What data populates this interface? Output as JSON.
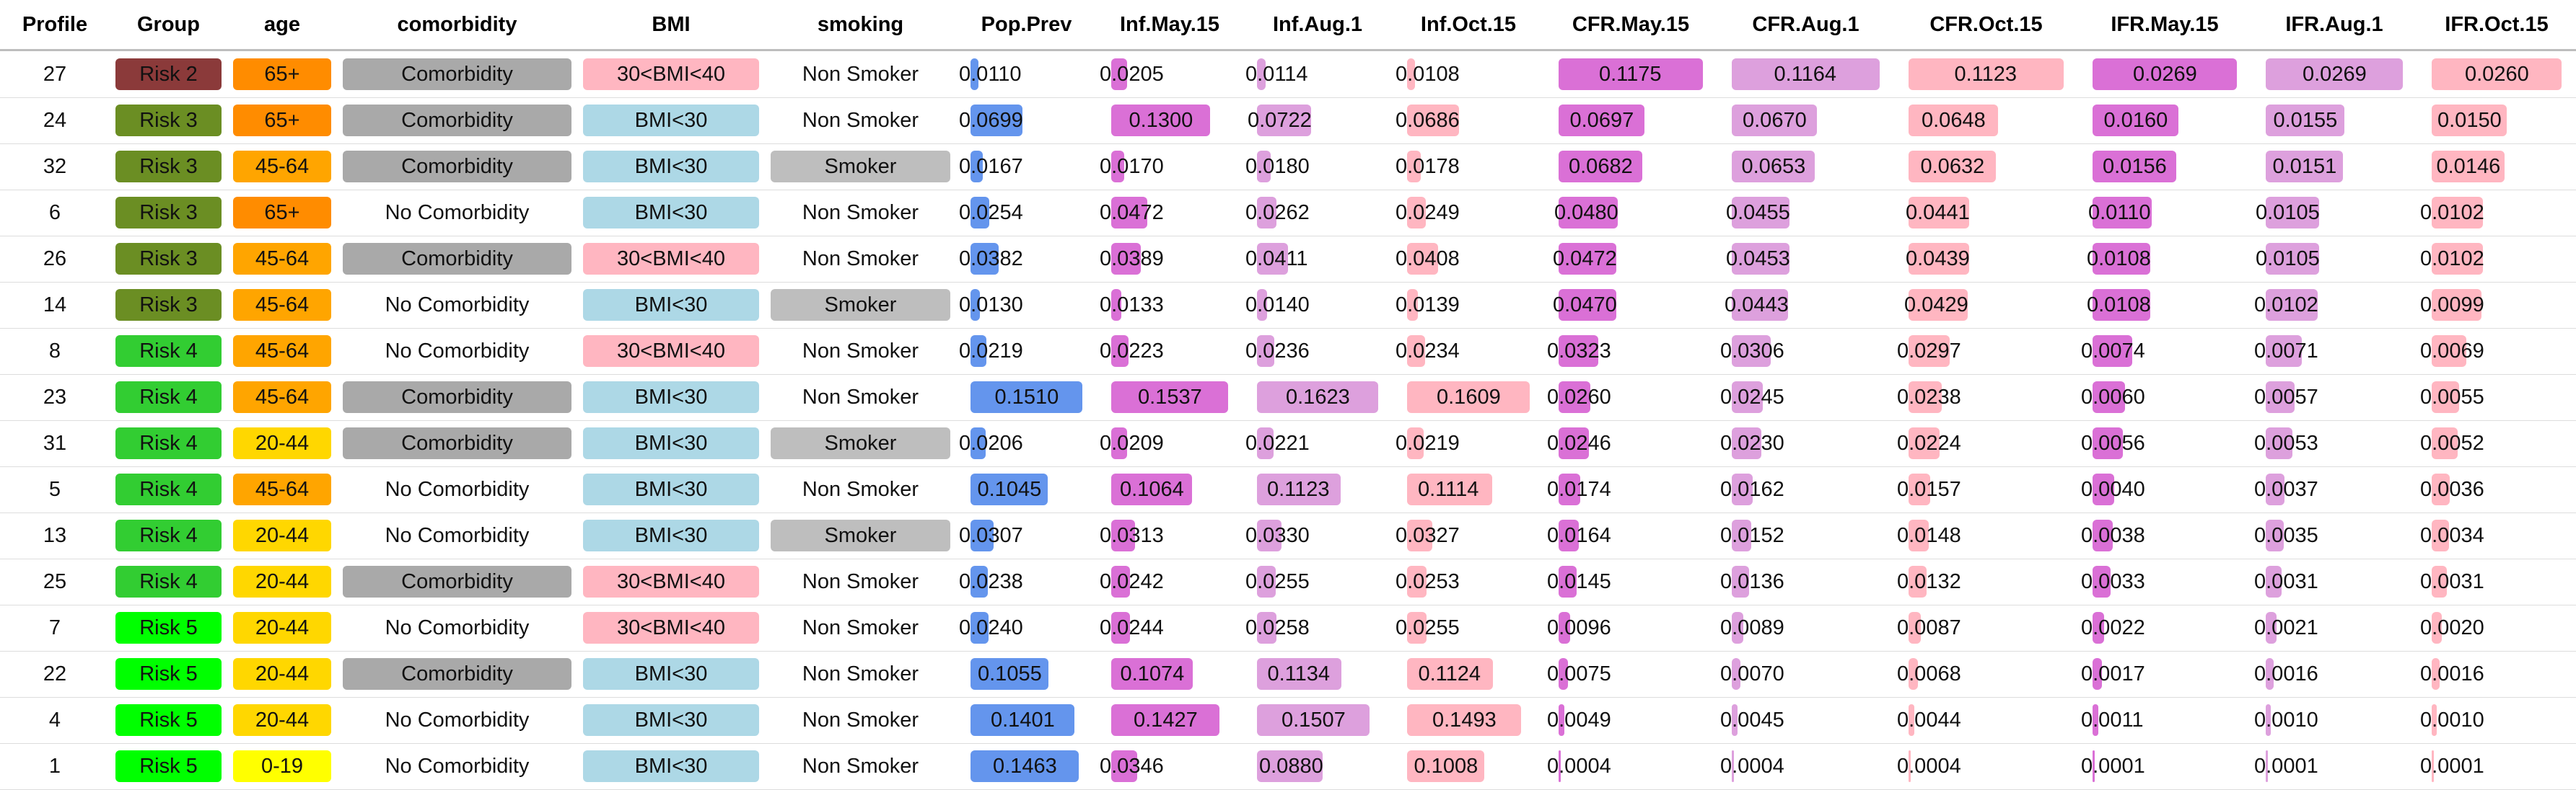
{
  "chart_data": {
    "type": "table",
    "columns": [
      "Profile",
      "Group",
      "age",
      "comorbidity",
      "BMI",
      "smoking",
      "Pop.Prev",
      "Inf.May.15",
      "Inf.Aug.1",
      "Inf.Oct.15",
      "CFR.May.15",
      "CFR.Aug.1",
      "CFR.Oct.15",
      "IFR.May.15",
      "IFR.Aug.1",
      "IFR.Oct.15"
    ],
    "rows": [
      {
        "Profile": "27",
        "Group": "Risk 2",
        "age": "65+",
        "comorbidity": "Comorbidity",
        "BMI": "30<BMI<40",
        "smoking": "Non Smoker",
        "Pop.Prev": "0.0110",
        "Inf.May.15": "0.0205",
        "Inf.Aug.1": "0.0114",
        "Inf.Oct.15": "0.0108",
        "CFR.May.15": "0.1175",
        "CFR.Aug.1": "0.1164",
        "CFR.Oct.15": "0.1123",
        "IFR.May.15": "0.0269",
        "IFR.Aug.1": "0.0269",
        "IFR.Oct.15": "0.0260"
      },
      {
        "Profile": "24",
        "Group": "Risk 3",
        "age": "65+",
        "comorbidity": "Comorbidity",
        "BMI": "BMI<30",
        "smoking": "Non Smoker",
        "Pop.Prev": "0.0699",
        "Inf.May.15": "0.1300",
        "Inf.Aug.1": "0.0722",
        "Inf.Oct.15": "0.0686",
        "CFR.May.15": "0.0697",
        "CFR.Aug.1": "0.0670",
        "CFR.Oct.15": "0.0648",
        "IFR.May.15": "0.0160",
        "IFR.Aug.1": "0.0155",
        "IFR.Oct.15": "0.0150"
      },
      {
        "Profile": "32",
        "Group": "Risk 3",
        "age": "45-64",
        "comorbidity": "Comorbidity",
        "BMI": "BMI<30",
        "smoking": "Smoker",
        "Pop.Prev": "0.0167",
        "Inf.May.15": "0.0170",
        "Inf.Aug.1": "0.0180",
        "Inf.Oct.15": "0.0178",
        "CFR.May.15": "0.0682",
        "CFR.Aug.1": "0.0653",
        "CFR.Oct.15": "0.0632",
        "IFR.May.15": "0.0156",
        "IFR.Aug.1": "0.0151",
        "IFR.Oct.15": "0.0146"
      },
      {
        "Profile": "6",
        "Group": "Risk 3",
        "age": "65+",
        "comorbidity": "No Comorbidity",
        "BMI": "BMI<30",
        "smoking": "Non Smoker",
        "Pop.Prev": "0.0254",
        "Inf.May.15": "0.0472",
        "Inf.Aug.1": "0.0262",
        "Inf.Oct.15": "0.0249",
        "CFR.May.15": "0.0480",
        "CFR.Aug.1": "0.0455",
        "CFR.Oct.15": "0.0441",
        "IFR.May.15": "0.0110",
        "IFR.Aug.1": "0.0105",
        "IFR.Oct.15": "0.0102"
      },
      {
        "Profile": "26",
        "Group": "Risk 3",
        "age": "45-64",
        "comorbidity": "Comorbidity",
        "BMI": "30<BMI<40",
        "smoking": "Non Smoker",
        "Pop.Prev": "0.0382",
        "Inf.May.15": "0.0389",
        "Inf.Aug.1": "0.0411",
        "Inf.Oct.15": "0.0408",
        "CFR.May.15": "0.0472",
        "CFR.Aug.1": "0.0453",
        "CFR.Oct.15": "0.0439",
        "IFR.May.15": "0.0108",
        "IFR.Aug.1": "0.0105",
        "IFR.Oct.15": "0.0102"
      },
      {
        "Profile": "14",
        "Group": "Risk 3",
        "age": "45-64",
        "comorbidity": "No Comorbidity",
        "BMI": "BMI<30",
        "smoking": "Smoker",
        "Pop.Prev": "0.0130",
        "Inf.May.15": "0.0133",
        "Inf.Aug.1": "0.0140",
        "Inf.Oct.15": "0.0139",
        "CFR.May.15": "0.0470",
        "CFR.Aug.1": "0.0443",
        "CFR.Oct.15": "0.0429",
        "IFR.May.15": "0.0108",
        "IFR.Aug.1": "0.0102",
        "IFR.Oct.15": "0.0099"
      },
      {
        "Profile": "8",
        "Group": "Risk 4",
        "age": "45-64",
        "comorbidity": "No Comorbidity",
        "BMI": "30<BMI<40",
        "smoking": "Non Smoker",
        "Pop.Prev": "0.0219",
        "Inf.May.15": "0.0223",
        "Inf.Aug.1": "0.0236",
        "Inf.Oct.15": "0.0234",
        "CFR.May.15": "0.0323",
        "CFR.Aug.1": "0.0306",
        "CFR.Oct.15": "0.0297",
        "IFR.May.15": "0.0074",
        "IFR.Aug.1": "0.0071",
        "IFR.Oct.15": "0.0069"
      },
      {
        "Profile": "23",
        "Group": "Risk 4",
        "age": "45-64",
        "comorbidity": "Comorbidity",
        "BMI": "BMI<30",
        "smoking": "Non Smoker",
        "Pop.Prev": "0.1510",
        "Inf.May.15": "0.1537",
        "Inf.Aug.1": "0.1623",
        "Inf.Oct.15": "0.1609",
        "CFR.May.15": "0.0260",
        "CFR.Aug.1": "0.0245",
        "CFR.Oct.15": "0.0238",
        "IFR.May.15": "0.0060",
        "IFR.Aug.1": "0.0057",
        "IFR.Oct.15": "0.0055"
      },
      {
        "Profile": "31",
        "Group": "Risk 4",
        "age": "20-44",
        "comorbidity": "Comorbidity",
        "BMI": "BMI<30",
        "smoking": "Smoker",
        "Pop.Prev": "0.0206",
        "Inf.May.15": "0.0209",
        "Inf.Aug.1": "0.0221",
        "Inf.Oct.15": "0.0219",
        "CFR.May.15": "0.0246",
        "CFR.Aug.1": "0.0230",
        "CFR.Oct.15": "0.0224",
        "IFR.May.15": "0.0056",
        "IFR.Aug.1": "0.0053",
        "IFR.Oct.15": "0.0052"
      },
      {
        "Profile": "5",
        "Group": "Risk 4",
        "age": "45-64",
        "comorbidity": "No Comorbidity",
        "BMI": "BMI<30",
        "smoking": "Non Smoker",
        "Pop.Prev": "0.1045",
        "Inf.May.15": "0.1064",
        "Inf.Aug.1": "0.1123",
        "Inf.Oct.15": "0.1114",
        "CFR.May.15": "0.0174",
        "CFR.Aug.1": "0.0162",
        "CFR.Oct.15": "0.0157",
        "IFR.May.15": "0.0040",
        "IFR.Aug.1": "0.0037",
        "IFR.Oct.15": "0.0036"
      },
      {
        "Profile": "13",
        "Group": "Risk 4",
        "age": "20-44",
        "comorbidity": "No Comorbidity",
        "BMI": "BMI<30",
        "smoking": "Smoker",
        "Pop.Prev": "0.0307",
        "Inf.May.15": "0.0313",
        "Inf.Aug.1": "0.0330",
        "Inf.Oct.15": "0.0327",
        "CFR.May.15": "0.0164",
        "CFR.Aug.1": "0.0152",
        "CFR.Oct.15": "0.0148",
        "IFR.May.15": "0.0038",
        "IFR.Aug.1": "0.0035",
        "IFR.Oct.15": "0.0034"
      },
      {
        "Profile": "25",
        "Group": "Risk 4",
        "age": "20-44",
        "comorbidity": "Comorbidity",
        "BMI": "30<BMI<40",
        "smoking": "Non Smoker",
        "Pop.Prev": "0.0238",
        "Inf.May.15": "0.0242",
        "Inf.Aug.1": "0.0255",
        "Inf.Oct.15": "0.0253",
        "CFR.May.15": "0.0145",
        "CFR.Aug.1": "0.0136",
        "CFR.Oct.15": "0.0132",
        "IFR.May.15": "0.0033",
        "IFR.Aug.1": "0.0031",
        "IFR.Oct.15": "0.0031"
      },
      {
        "Profile": "7",
        "Group": "Risk 5",
        "age": "20-44",
        "comorbidity": "No Comorbidity",
        "BMI": "30<BMI<40",
        "smoking": "Non Smoker",
        "Pop.Prev": "0.0240",
        "Inf.May.15": "0.0244",
        "Inf.Aug.1": "0.0258",
        "Inf.Oct.15": "0.0255",
        "CFR.May.15": "0.0096",
        "CFR.Aug.1": "0.0089",
        "CFR.Oct.15": "0.0087",
        "IFR.May.15": "0.0022",
        "IFR.Aug.1": "0.0021",
        "IFR.Oct.15": "0.0020"
      },
      {
        "Profile": "22",
        "Group": "Risk 5",
        "age": "20-44",
        "comorbidity": "Comorbidity",
        "BMI": "BMI<30",
        "smoking": "Non Smoker",
        "Pop.Prev": "0.1055",
        "Inf.May.15": "0.1074",
        "Inf.Aug.1": "0.1134",
        "Inf.Oct.15": "0.1124",
        "CFR.May.15": "0.0075",
        "CFR.Aug.1": "0.0070",
        "CFR.Oct.15": "0.0068",
        "IFR.May.15": "0.0017",
        "IFR.Aug.1": "0.0016",
        "IFR.Oct.15": "0.0016"
      },
      {
        "Profile": "4",
        "Group": "Risk 5",
        "age": "20-44",
        "comorbidity": "No Comorbidity",
        "BMI": "BMI<30",
        "smoking": "Non Smoker",
        "Pop.Prev": "0.1401",
        "Inf.May.15": "0.1427",
        "Inf.Aug.1": "0.1507",
        "Inf.Oct.15": "0.1493",
        "CFR.May.15": "0.0049",
        "CFR.Aug.1": "0.0045",
        "CFR.Oct.15": "0.0044",
        "IFR.May.15": "0.0011",
        "IFR.Aug.1": "0.0010",
        "IFR.Oct.15": "0.0010"
      },
      {
        "Profile": "1",
        "Group": "Risk 5",
        "age": "0-19",
        "comorbidity": "No Comorbidity",
        "BMI": "BMI<30",
        "smoking": "Non Smoker",
        "Pop.Prev": "0.1463",
        "Inf.May.15": "0.0346",
        "Inf.Aug.1": "0.0880",
        "Inf.Oct.15": "0.1008",
        "CFR.May.15": "0.0004",
        "CFR.Aug.1": "0.0004",
        "CFR.Oct.15": "0.0004",
        "IFR.May.15": "0.0001",
        "IFR.Aug.1": "0.0001",
        "IFR.Oct.15": "0.0001"
      }
    ],
    "bar_colors": {
      "Pop.Prev": "#6495ED",
      "Inf.May.15": "#DA70D6",
      "Inf.Aug.1": "#DDA0DD",
      "Inf.Oct.15": "#FFB6C1",
      "CFR.May.15": "#DA70D6",
      "CFR.Aug.1": "#DDA0DD",
      "CFR.Oct.15": "#FFB6C1",
      "IFR.May.15": "#DA70D6",
      "IFR.Aug.1": "#DDA0DD",
      "IFR.Oct.15": "#FFB6C1"
    },
    "bar_scales": {
      "Pop.Prev": 0.151,
      "Inf.May.15": 0.1537,
      "Inf.Aug.1": 0.1623,
      "Inf.Oct.15": 0.1609,
      "CFR.May.15": 0.1175,
      "CFR.Aug.1": 0.1164,
      "CFR.Oct.15": 0.1123,
      "IFR.May.15": 0.0269,
      "IFR.Aug.1": 0.0269,
      "IFR.Oct.15": 0.026
    },
    "category_colors": {
      "Group": {
        "Risk 2": "#8B3A3A",
        "Risk 3": "#6B8E23",
        "Risk 4": "#32CD32",
        "Risk 5": "#00FF00"
      },
      "age": {
        "65+": "#FF8C00",
        "45-64": "#FFA500",
        "20-44": "#FFD700",
        "0-19": "#FFFF00"
      },
      "comorbidity": {
        "Comorbidity": "#A9A9A9"
      },
      "BMI": {
        "30<BMI<40": "#FFB6C1",
        "BMI<30": "#ADD8E6"
      },
      "smoking": {
        "Smoker": "#BEBEBE"
      }
    }
  }
}
